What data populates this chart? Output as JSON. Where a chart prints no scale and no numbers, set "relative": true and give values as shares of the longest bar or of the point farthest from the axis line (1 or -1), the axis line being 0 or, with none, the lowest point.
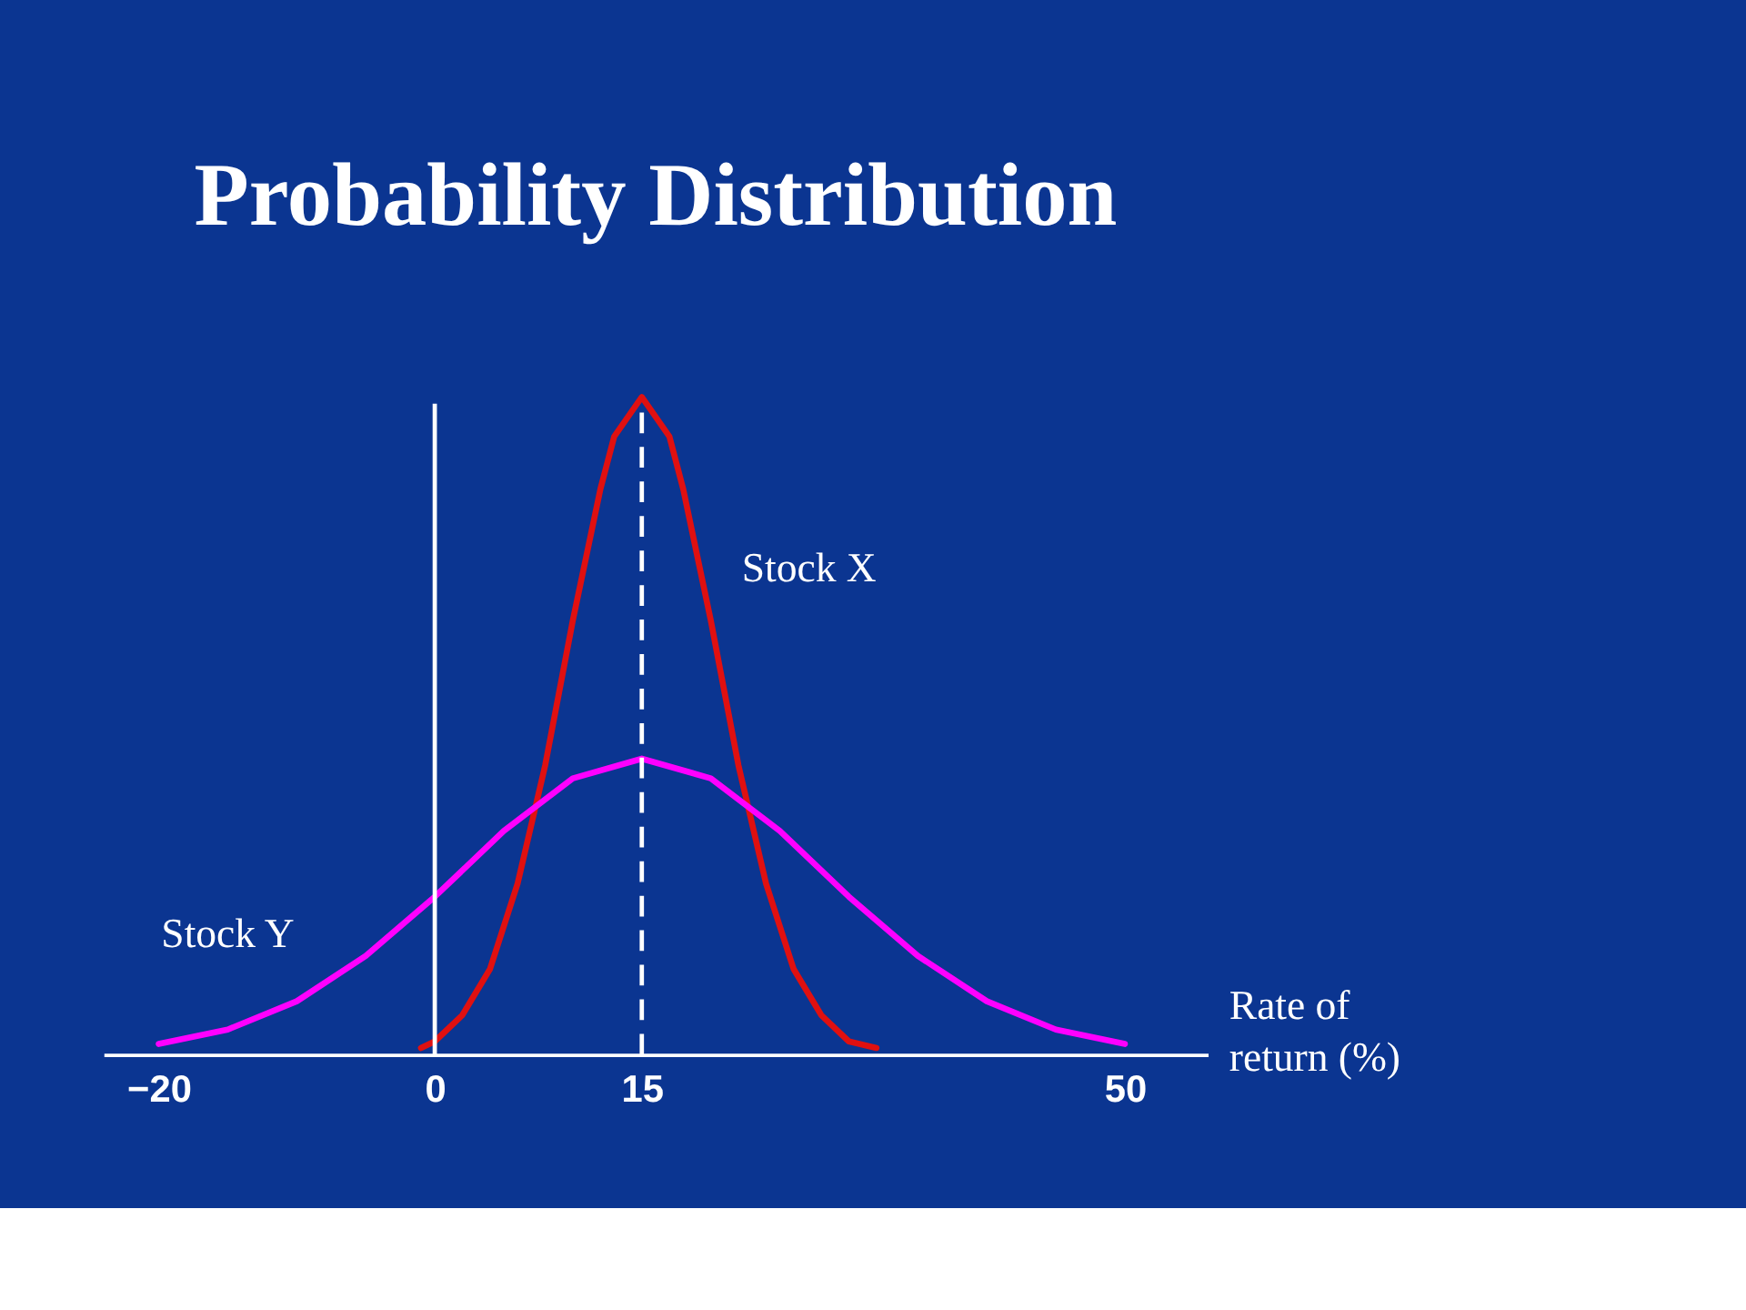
{
  "chart_data": {
    "type": "line",
    "title": "Probability Distribution",
    "xlabel": "Rate of return (%)",
    "relative": true,
    "xlim": [
      -24,
      56
    ],
    "xticks": [
      -20,
      0,
      15,
      50
    ],
    "grid": false,
    "legend": false,
    "marker": "none",
    "line_style": "solid",
    "series": [
      {
        "name": "Stock X",
        "color": "#e01010",
        "x": [
          -1,
          0,
          2,
          4,
          6,
          8,
          10,
          12,
          13,
          15,
          17,
          18,
          20,
          22,
          24,
          26,
          28,
          30,
          32
        ],
        "values": [
          0.01,
          0.02,
          0.06,
          0.13,
          0.26,
          0.44,
          0.66,
          0.86,
          0.94,
          1,
          0.94,
          0.86,
          0.66,
          0.44,
          0.26,
          0.13,
          0.06,
          0.02,
          0.01
        ]
      },
      {
        "name": "Stock Y",
        "color": "#ff00ff",
        "x": [
          -20,
          -15,
          -10,
          -5,
          0,
          5,
          10,
          15,
          20,
          25,
          30,
          35,
          40,
          45,
          50
        ],
        "values": [
          0.016,
          0.038,
          0.081,
          0.15,
          0.24,
          0.34,
          0.42,
          0.45,
          0.42,
          0.34,
          0.24,
          0.15,
          0.081,
          0.038,
          0.016
        ]
      }
    ],
    "ref_lines": [
      {
        "axis": "x",
        "value": 0,
        "color": "#ffffff",
        "line_style": "solid"
      },
      {
        "axis": "x",
        "value": 15,
        "color": "#ffffff",
        "line_style": "dashed"
      }
    ]
  }
}
